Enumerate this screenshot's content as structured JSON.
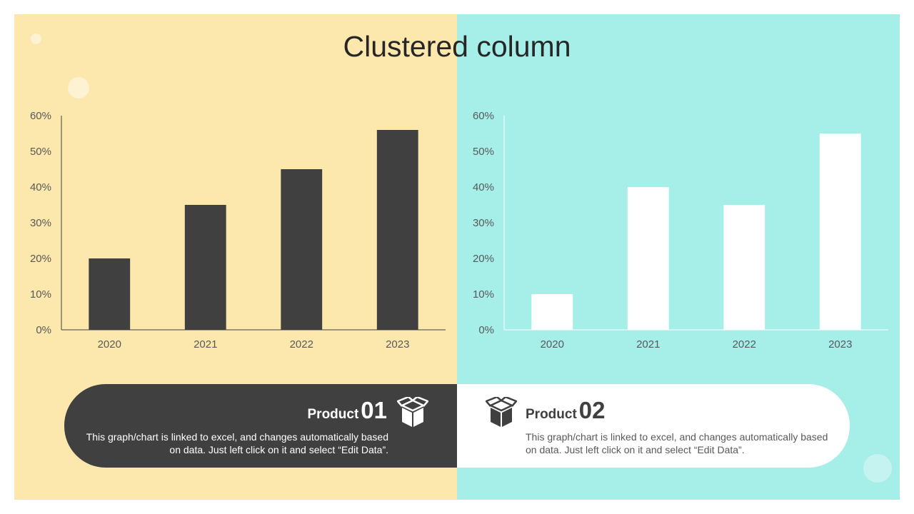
{
  "slide": {
    "title": "Clustered column"
  },
  "colors": {
    "left_background": "#fce8ad",
    "right_background": "#a6eee8",
    "dark": "#404040",
    "light": "#ffffff"
  },
  "chart_data": [
    {
      "type": "bar",
      "categories": [
        "2020",
        "2021",
        "2022",
        "2023"
      ],
      "values": [
        0.2,
        0.35,
        0.45,
        0.56
      ],
      "ylim": [
        0,
        0.6
      ],
      "yticks": [
        "0%",
        "10%",
        "20%",
        "30%",
        "40%",
        "50%",
        "60%"
      ],
      "bar_color": "#404040",
      "grid": false
    },
    {
      "type": "bar",
      "categories": [
        "2020",
        "2021",
        "2022",
        "2023"
      ],
      "values": [
        0.1,
        0.4,
        0.35,
        0.55
      ],
      "ylim": [
        0,
        0.6
      ],
      "yticks": [
        "0%",
        "10%",
        "20%",
        "30%",
        "40%",
        "50%",
        "60%"
      ],
      "bar_color": "#ffffff",
      "grid": false
    }
  ],
  "products": [
    {
      "label": "Product",
      "number": "01",
      "icon": "box-icon",
      "description": "This graph/chart is linked to excel, and changes automatically based on data. Just left click on it and select “Edit Data”."
    },
    {
      "label": "Product",
      "number": "02",
      "icon": "box-icon",
      "description": "This graph/chart is linked to excel, and changes automatically based on data. Just left click on it and select “Edit Data”."
    }
  ]
}
